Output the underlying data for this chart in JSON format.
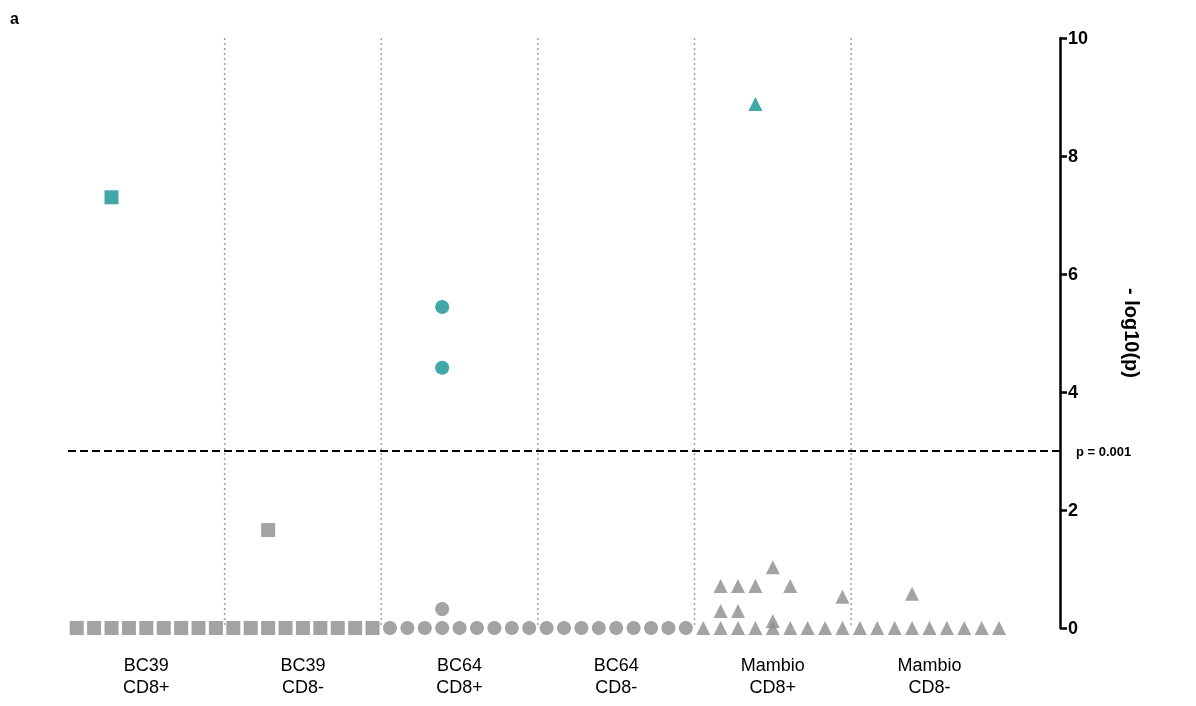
{
  "chart_data": {
    "type": "scatter",
    "ylabel": "- log10(p)",
    "annotations": [
      "a",
      "p = 0.001"
    ],
    "categories": [
      null,
      null,
      null,
      null,
      "BC39\nCD8+",
      null,
      null,
      null,
      null,
      null,
      null,
      null,
      null,
      "BC39\nCD8-",
      null,
      null,
      null,
      null,
      null,
      null,
      null,
      null,
      "BC64\nCD8+",
      null,
      null,
      null,
      null,
      null,
      null,
      null,
      null,
      "BC64\nCD8-",
      null,
      null,
      null,
      null,
      null,
      null,
      null,
      null,
      "Mambio\nCD8+",
      null,
      null,
      null,
      null,
      null,
      null,
      null,
      null,
      "Mambio\nCD8-",
      null,
      null,
      null,
      null,
      null,
      null,
      null
    ],
    "ylim": [
      0,
      10
    ],
    "yticks": [
      0,
      2,
      4,
      6,
      8,
      10
    ],
    "grid": "x",
    "ref_lines": [
      {
        "axis": "y",
        "value": 3,
        "color": "#000000",
        "line_style": "dashed"
      }
    ],
    "series": [
      {
        "marker": "square",
        "color": "#8c8c8c",
        "values": [
          0,
          0,
          0,
          0,
          0,
          0,
          0,
          0,
          0,
          0,
          0,
          0,
          0,
          0,
          0,
          0,
          0,
          0,
          null,
          null,
          null,
          null,
          null,
          null,
          null,
          null,
          null,
          null,
          null,
          null,
          null,
          null,
          null,
          null,
          null,
          null,
          null,
          null,
          null,
          null,
          null,
          null,
          null,
          null,
          null,
          null,
          null,
          null,
          null,
          null,
          null,
          null,
          null,
          null,
          null,
          null,
          null
        ]
      },
      {
        "marker": "circle",
        "color": "#8c8c8c",
        "values": [
          null,
          null,
          null,
          null,
          null,
          null,
          null,
          null,
          null,
          null,
          null,
          null,
          null,
          null,
          null,
          null,
          null,
          null,
          0,
          0,
          0,
          0,
          0,
          0,
          0,
          0,
          0,
          0,
          0,
          0,
          0,
          0,
          0,
          0,
          0,
          0,
          null,
          null,
          null,
          null,
          null,
          null,
          null,
          null,
          null,
          null,
          null,
          null,
          null,
          null,
          null,
          null,
          null,
          null,
          null,
          null,
          null
        ]
      },
      {
        "marker": "triangle",
        "color": "#8c8c8c",
        "values": [
          null,
          null,
          null,
          null,
          null,
          null,
          null,
          null,
          null,
          null,
          null,
          null,
          null,
          null,
          null,
          null,
          null,
          null,
          null,
          null,
          null,
          null,
          null,
          null,
          null,
          null,
          null,
          null,
          null,
          null,
          null,
          null,
          null,
          null,
          null,
          null,
          0,
          0,
          0,
          0,
          0,
          0,
          0,
          0,
          0,
          0,
          0,
          0,
          0,
          0,
          0,
          0,
          0,
          0,
          null,
          null,
          null
        ]
      },
      {
        "marker": "square",
        "color": "#8c8c8c",
        "values": [
          null,
          null,
          null,
          null,
          null,
          null,
          null,
          null,
          null,
          null,
          null,
          1.66,
          null,
          null,
          null,
          null,
          null,
          null,
          null,
          null,
          null,
          null,
          null,
          null,
          null,
          null,
          null,
          null,
          null,
          null,
          null,
          null,
          null,
          null,
          null,
          null,
          null,
          null,
          null,
          null,
          null,
          null,
          null,
          null,
          null,
          null,
          null,
          null,
          null,
          null,
          null,
          null,
          null,
          null,
          null,
          null,
          null
        ]
      },
      {
        "marker": "circle",
        "color": "#8c8c8c",
        "values": [
          null,
          null,
          null,
          null,
          null,
          null,
          null,
          null,
          null,
          null,
          null,
          null,
          null,
          null,
          null,
          null,
          null,
          null,
          null,
          null,
          null,
          0.32,
          null,
          null,
          null,
          null,
          null,
          null,
          null,
          null,
          null,
          null,
          null,
          null,
          null,
          null,
          null,
          null,
          null,
          null,
          null,
          null,
          null,
          null,
          null,
          null,
          null,
          null,
          null,
          null,
          null,
          null,
          null,
          null,
          null,
          null,
          null
        ]
      },
      {
        "marker": "triangle",
        "color": "#8c8c8c",
        "values": [
          null,
          null,
          null,
          null,
          null,
          null,
          null,
          null,
          null,
          null,
          null,
          null,
          null,
          null,
          null,
          null,
          null,
          null,
          null,
          null,
          null,
          null,
          null,
          null,
          null,
          null,
          null,
          null,
          null,
          null,
          null,
          null,
          null,
          null,
          null,
          null,
          null,
          0.71,
          0.71,
          0.71,
          1.03,
          0.71,
          null,
          null,
          0.53,
          null,
          null,
          null,
          0.58,
          null,
          null,
          null,
          null,
          null,
          null,
          null,
          null
        ]
      },
      {
        "marker": "triangle",
        "color": "#8c8c8c",
        "values": [
          null,
          null,
          null,
          null,
          null,
          null,
          null,
          null,
          null,
          null,
          null,
          null,
          null,
          null,
          null,
          null,
          null,
          null,
          null,
          null,
          null,
          null,
          null,
          null,
          null,
          null,
          null,
          null,
          null,
          null,
          null,
          null,
          null,
          null,
          null,
          null,
          null,
          0.29,
          0.29,
          null,
          0.12,
          null,
          null,
          null,
          null,
          null,
          null,
          null,
          null,
          null,
          null,
          null,
          null,
          null,
          null,
          null,
          null
        ]
      },
      {
        "marker": "square",
        "color": "#139191",
        "values": [
          null,
          null,
          7.3,
          null,
          null,
          null,
          null,
          null,
          null,
          null,
          null,
          null,
          null,
          null,
          null,
          null,
          null,
          null,
          null,
          null,
          null,
          null,
          null,
          null,
          null,
          null,
          null,
          null,
          null,
          null,
          null,
          null,
          null,
          null,
          null,
          null,
          null,
          null,
          null,
          null,
          null,
          null,
          null,
          null,
          null,
          null,
          null,
          null,
          null,
          null,
          null,
          null,
          null,
          null,
          null,
          null,
          null
        ]
      },
      {
        "marker": "circle",
        "color": "#139191",
        "values": [
          null,
          null,
          null,
          null,
          null,
          null,
          null,
          null,
          null,
          null,
          null,
          null,
          null,
          null,
          null,
          null,
          null,
          null,
          null,
          null,
          null,
          5.44,
          null,
          null,
          null,
          null,
          null,
          null,
          null,
          null,
          null,
          null,
          null,
          null,
          null,
          null,
          null,
          null,
          null,
          null,
          null,
          null,
          null,
          null,
          null,
          null,
          null,
          null,
          null,
          null,
          null,
          null,
          null,
          null,
          null,
          null,
          null
        ]
      },
      {
        "marker": "circle",
        "color": "#139191",
        "values": [
          null,
          null,
          null,
          null,
          null,
          null,
          null,
          null,
          null,
          null,
          null,
          null,
          null,
          null,
          null,
          null,
          null,
          null,
          null,
          null,
          null,
          4.41,
          null,
          null,
          null,
          null,
          null,
          null,
          null,
          null,
          null,
          null,
          null,
          null,
          null,
          null,
          null,
          null,
          null,
          null,
          null,
          null,
          null,
          null,
          null,
          null,
          null,
          null,
          null,
          null,
          null,
          null,
          null,
          null,
          null,
          null,
          null
        ]
      },
      {
        "marker": "triangle",
        "color": "#139191",
        "values": [
          null,
          null,
          null,
          null,
          null,
          null,
          null,
          null,
          null,
          null,
          null,
          null,
          null,
          null,
          null,
          null,
          null,
          null,
          null,
          null,
          null,
          null,
          null,
          null,
          null,
          null,
          null,
          null,
          null,
          null,
          null,
          null,
          null,
          null,
          null,
          null,
          null,
          null,
          null,
          8.88,
          null,
          null,
          null,
          null,
          null,
          null,
          null,
          null,
          null,
          null,
          null,
          null,
          null,
          null,
          null,
          null,
          null
        ]
      }
    ]
  }
}
